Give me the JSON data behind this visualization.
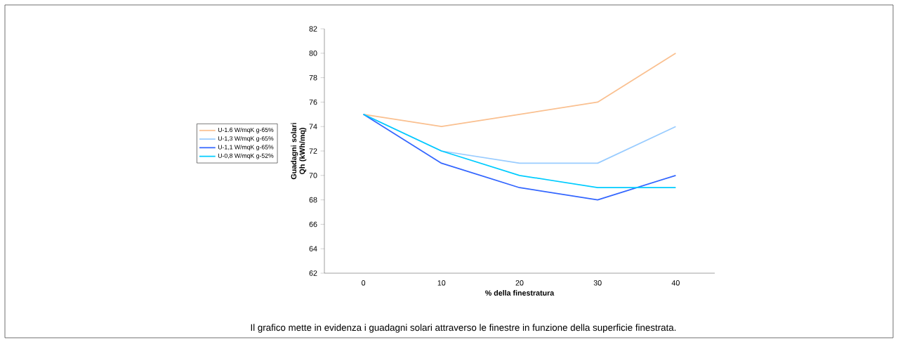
{
  "chart_data": {
    "type": "line",
    "categories": [
      "0",
      "10",
      "20",
      "30",
      "40"
    ],
    "ylabel": "Guadagni solari Qh (kWh/mq)",
    "xlabel": "% della finestratura",
    "ylim": [
      62,
      82
    ],
    "yticks": [
      62,
      64,
      66,
      68,
      70,
      72,
      74,
      76,
      78,
      80,
      82
    ],
    "series": [
      {
        "name": "U-1.6 W/mqK g-65%",
        "color": "#fac090",
        "values": [
          75,
          74,
          75,
          76,
          80
        ]
      },
      {
        "name": "U-1,3 W/mqK g-65%",
        "color": "#99ccff",
        "values": [
          75,
          72,
          71,
          71,
          74
        ]
      },
      {
        "name": "U-1,1 W/mqK g-65%",
        "color": "#3366ff",
        "values": [
          75,
          71,
          69,
          68,
          70
        ]
      },
      {
        "name": "U-0,8 W/mqK g-52%",
        "color": "#00ccff",
        "values": [
          75,
          72,
          70,
          69,
          69
        ]
      }
    ],
    "legend": "left",
    "grid": false,
    "marker": "none",
    "line_style": "solid",
    "annotations": [
      "Il grafico mette in evidenza i guadagni solari attraverso le finestre in funzione della superficie finestrata."
    ]
  }
}
